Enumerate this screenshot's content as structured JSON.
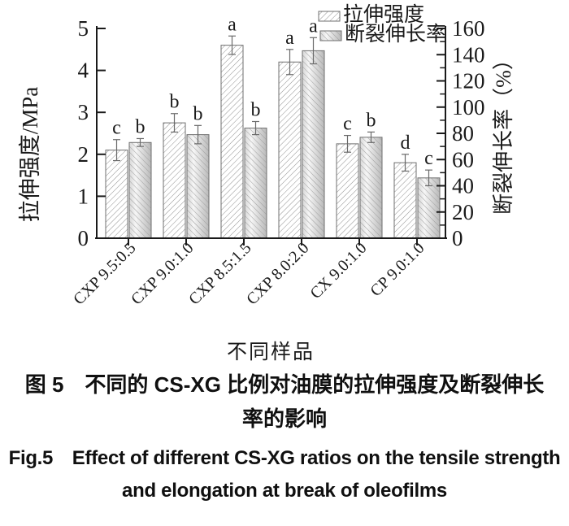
{
  "chart_data": {
    "type": "bar",
    "categories": [
      "CXP 9.5:0.5",
      "CXP 9.0:1.0",
      "CXP 8.5:1.5",
      "CXP 8.0:2.0",
      "CX 9.0:1.0",
      "CP 9.0:1.0"
    ],
    "series": [
      {
        "name": "拉伸强度",
        "axis": "left",
        "unit": "MPa",
        "values": [
          2.1,
          2.75,
          4.6,
          4.2,
          2.25,
          1.8
        ],
        "errors": [
          0.25,
          0.22,
          0.22,
          0.3,
          0.2,
          0.2
        ],
        "letters": [
          "c",
          "b",
          "a",
          "a",
          "c",
          "d"
        ]
      },
      {
        "name": "断裂伸长率",
        "axis": "right",
        "unit": "%",
        "values": [
          73,
          79,
          84,
          143,
          77,
          46
        ],
        "errors": [
          3,
          7,
          5,
          10,
          4,
          6
        ],
        "letters": [
          "b",
          "b",
          "b",
          "a",
          "b",
          "c"
        ]
      }
    ],
    "left_axis": {
      "label": "拉伸强度/MPa",
      "min": 0,
      "max": 5,
      "ticks": [
        0,
        1,
        2,
        3,
        4,
        5
      ]
    },
    "right_axis": {
      "label": "断裂伸长率（%）",
      "min": 0,
      "max": 160,
      "tick_step": 20,
      "minor_step": 10
    },
    "x_axis": {
      "label": "不同样品"
    },
    "legend": {
      "position": "top-right",
      "entries": [
        "拉伸强度",
        "断裂伸长率"
      ]
    },
    "colors": {
      "ink": "#1a1a1a",
      "hatch_tensile": "#8f8f8f",
      "hatch_elong": "#9e9e9e",
      "bar_stroke": "#6f6f6f",
      "elong_edge": "#d7d7d7",
      "elong_light": "#f6f6f6",
      "elong_dark": "#b9b9b9",
      "error": "#6a6a6a"
    }
  },
  "captions": {
    "zh_line1": "图 5　不同的 CS-XG 比例对油膜的拉伸强度及断裂伸长",
    "zh_line2": "率的影响",
    "en_line1": "Fig.5　Effect of different CS-XG ratios on the tensile strength",
    "en_line2": "and elongation at break of oleofilms"
  }
}
